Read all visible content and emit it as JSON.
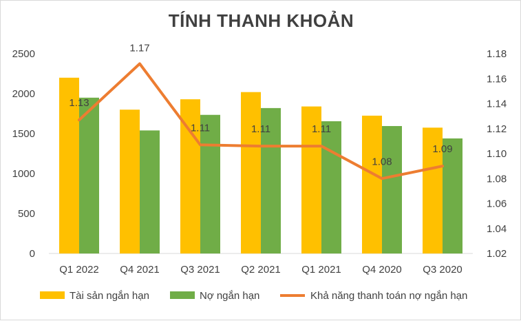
{
  "chart_data": {
    "type": "bar",
    "title": "TÍNH THANH KHOẢN",
    "categories": [
      "Q1 2022",
      "Q4 2021",
      "Q3 2021",
      "Q2 2021",
      "Q1 2021",
      "Q4 2020",
      "Q3 2020"
    ],
    "series": [
      {
        "name": "Tài sản ngắn hạn",
        "type": "bar",
        "axis": "left",
        "color": "#FFC000",
        "values": [
          2200,
          1800,
          1930,
          2020,
          1840,
          1725,
          1575
        ]
      },
      {
        "name": "Nợ ngắn hạn",
        "type": "bar",
        "axis": "left",
        "color": "#70AD47",
        "values": [
          1950,
          1540,
          1735,
          1820,
          1655,
          1595,
          1440
        ]
      },
      {
        "name": "Khả năng thanh toán nợ ngắn hạn",
        "type": "line",
        "axis": "right",
        "color": "#ED7D31",
        "values": [
          1.127,
          1.172,
          1.107,
          1.106,
          1.106,
          1.08,
          1.09
        ],
        "data_labels": [
          "1.13",
          "1.17",
          "1.11",
          "1.11",
          "1.11",
          "1.08",
          "1.09"
        ]
      }
    ],
    "y_left": {
      "range": [
        0,
        2500
      ],
      "ticks": [
        "0",
        "500",
        "1000",
        "1500",
        "2000",
        "2500"
      ]
    },
    "y_right": {
      "range": [
        1.02,
        1.18
      ],
      "ticks": [
        "1.02",
        "1.04",
        "1.06",
        "1.08",
        "1.10",
        "1.12",
        "1.14",
        "1.16",
        "1.18"
      ]
    },
    "xlabel": "",
    "ylabel": "",
    "grid": false,
    "legend": "bottom"
  }
}
